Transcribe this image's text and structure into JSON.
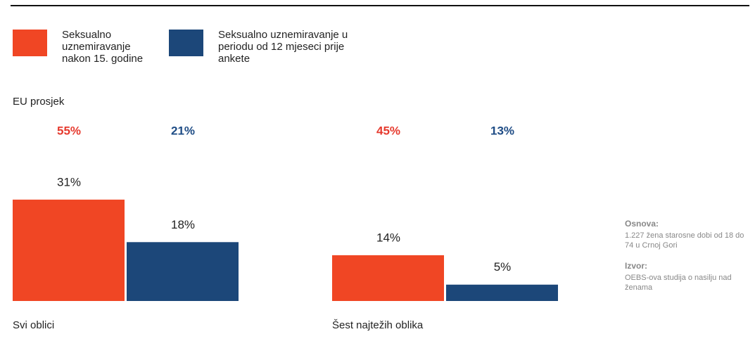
{
  "chart_data": {
    "type": "bar",
    "categories": [
      "Svi oblici",
      "Šest najtežih oblika"
    ],
    "series": [
      {
        "name": "Seksualno uznemiravanje nakon 15. godine",
        "color": "#f04624",
        "values": [
          31,
          14
        ],
        "value_labels": [
          "31%",
          "14%"
        ],
        "eu_values": [
          55,
          45
        ],
        "eu_value_labels": [
          "55%",
          "45%"
        ],
        "eu_color": "#e63a2e"
      },
      {
        "name": "Seksualno uznemiravanje u periodu od 12 mjeseci prije ankete",
        "color": "#1c4779",
        "values": [
          18,
          5
        ],
        "value_labels": [
          "18%",
          "5%"
        ],
        "eu_values": [
          21,
          13
        ],
        "eu_value_labels": [
          "21%",
          "13%"
        ],
        "eu_color": "#1e4c85"
      }
    ],
    "eu_label": "EU prosjek",
    "notes": [
      {
        "heading": "Osnova:",
        "text": "1.227 žena starosne dobi od 18 do 74 u Crnoj Gori"
      },
      {
        "heading": "Izvor:",
        "text": "OEBS-ova studija o nasilju nad ženama"
      }
    ]
  }
}
